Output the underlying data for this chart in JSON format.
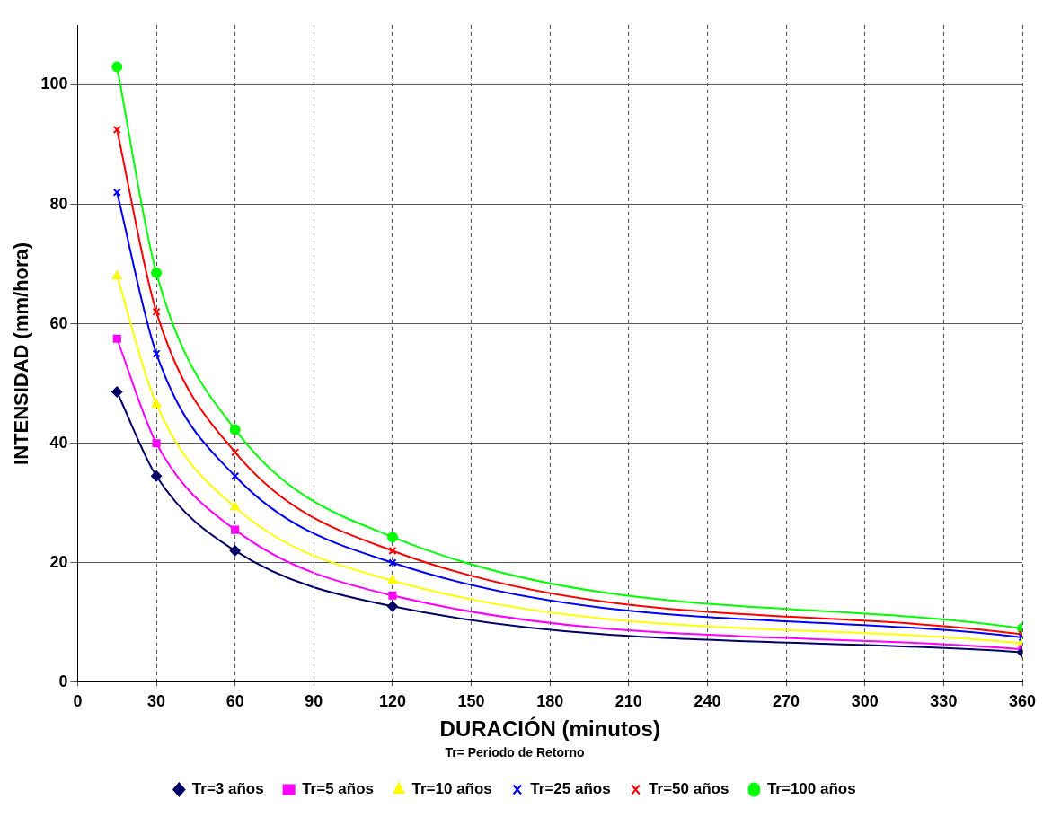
{
  "chart_data": {
    "type": "line",
    "xlabel": "DURACIÓN (minutos)",
    "ylabel": "INTENSIDAD (mm/hora)",
    "legend_title": "Tr= Periodo de Retorno",
    "legend": "bottom",
    "grid": true,
    "line_style": "solid",
    "x": [
      15,
      30,
      60,
      120,
      360
    ],
    "xlim": [
      0,
      360
    ],
    "xticks": [
      0,
      30,
      60,
      90,
      120,
      150,
      180,
      210,
      240,
      270,
      300,
      330,
      360
    ],
    "ylim": [
      0,
      110
    ],
    "yticks": [
      0,
      20,
      40,
      60,
      80,
      100
    ],
    "series": [
      {
        "name": "Tr=3 años",
        "color": "#000066",
        "marker": "diamond",
        "values": [
          48.6,
          34.5,
          22,
          12.7,
          5
        ]
      },
      {
        "name": "Tr=5 años",
        "color": "#ff00ff",
        "marker": "square",
        "values": [
          57.5,
          40,
          25.5,
          14.5,
          5.5
        ]
      },
      {
        "name": "Tr=10 años",
        "color": "#ffff00",
        "marker": "triangle",
        "values": [
          68,
          46.5,
          29.3,
          17,
          6.5
        ]
      },
      {
        "name": "Tr=25 años",
        "color": "#0000ff",
        "marker": "cross",
        "values": [
          82,
          55,
          34.5,
          20,
          7.5
        ]
      },
      {
        "name": "Tr=50 años",
        "color": "#ff0000",
        "marker": "cross",
        "values": [
          92.5,
          62,
          38.5,
          22,
          8
        ]
      },
      {
        "name": "Tr=100 años",
        "color": "#00ff00",
        "marker": "circle",
        "values": [
          103,
          68.5,
          42.3,
          24.3,
          9
        ]
      }
    ]
  }
}
